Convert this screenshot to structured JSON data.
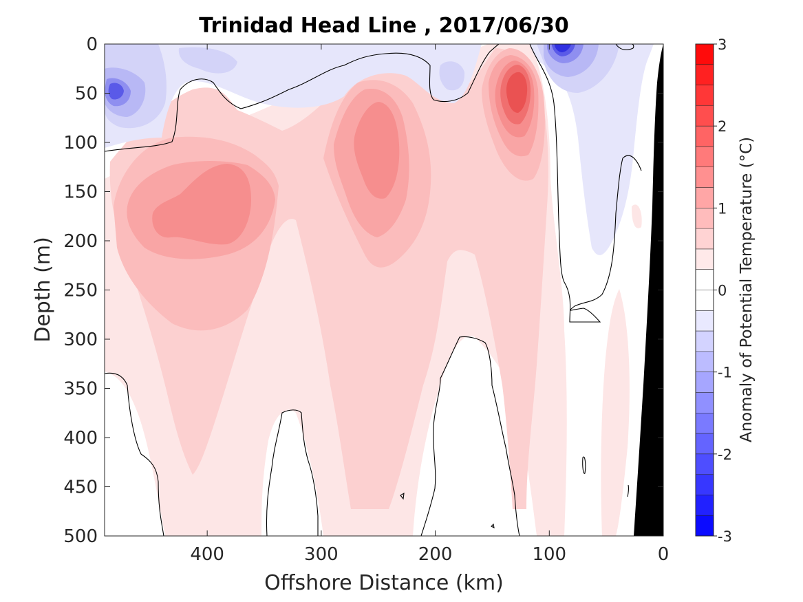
{
  "chart_data": {
    "type": "heatmap",
    "subtype": "filled-contour-section",
    "title": "Trinidad Head Line , 2017/06/30",
    "xlabel": "Offshore Distance (km)",
    "ylabel": "Depth (m)",
    "colorbar_label": "Anomaly of Potential Temperature (°C)",
    "x_axis_reversed": true,
    "y_axis_reversed": true,
    "xlim": [
      490,
      0
    ],
    "ylim": [
      0,
      500
    ],
    "xticks": [
      400,
      300,
      200,
      100,
      0
    ],
    "yticks": [
      0,
      50,
      100,
      150,
      200,
      250,
      300,
      350,
      400,
      450,
      500
    ],
    "colorbar": {
      "range": [
        -3,
        3
      ],
      "step": 0.25,
      "ticks": [
        3,
        2,
        1,
        0,
        -1,
        -2,
        -3
      ],
      "low_color": "#0000ff",
      "zero_color": "#ffffff",
      "high_color": "#ff0000"
    },
    "contour_lines": [
      0
    ],
    "bathymetry_color": "#000000",
    "features": [
      {
        "name": "warm core",
        "x_km": 405,
        "depth_m": 175,
        "anomaly_C": 1.1
      },
      {
        "name": "warm core",
        "x_km": 250,
        "depth_m": 130,
        "anomaly_C": 1.2
      },
      {
        "name": "warm core",
        "x_km": 125,
        "depth_m": 45,
        "anomaly_C": 2.1
      },
      {
        "name": "cold surface patch",
        "x_km": 480,
        "depth_m": 45,
        "anomaly_C": -1.3
      },
      {
        "name": "cold surface patch",
        "x_km": 93,
        "depth_m": 5,
        "anomaly_C": -1.9
      },
      {
        "name": "cold surface patch",
        "x_km": 190,
        "depth_m": 30,
        "anomaly_C": -0.5
      },
      {
        "name": "cold nearshore tongue",
        "x_km": 75,
        "depth_m": 150,
        "anomaly_C": -0.3
      }
    ]
  }
}
